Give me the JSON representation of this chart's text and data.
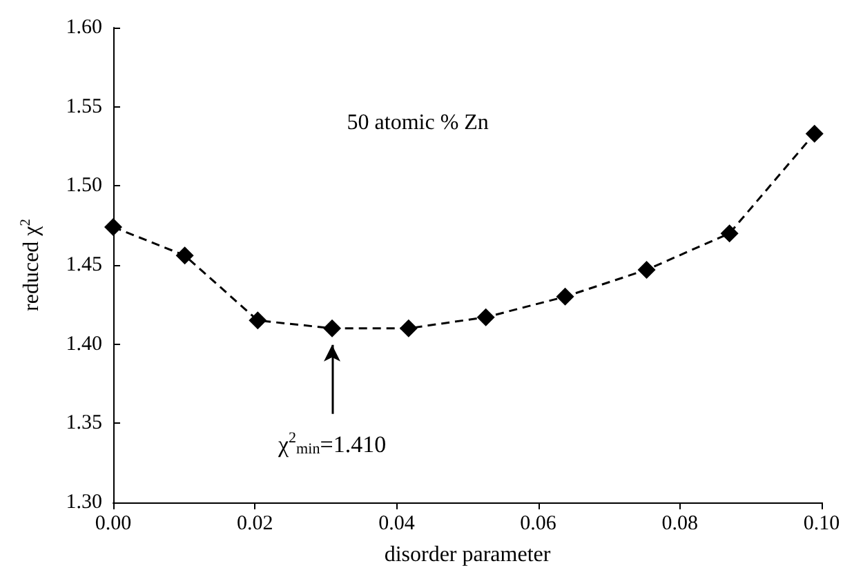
{
  "chart_data": {
    "type": "line",
    "xlabel": "disorder parameter",
    "ylabel": "reduced χ$^{2}$",
    "x": [
      0.0,
      0.0101,
      0.0204,
      0.0309,
      0.0417,
      0.0526,
      0.0638,
      0.0753,
      0.087,
      0.099
    ],
    "series": [
      {
        "color": "#000000",
        "values": [
          1.474,
          1.456,
          1.415,
          1.41,
          1.41,
          1.417,
          1.43,
          1.447,
          1.47,
          1.533
        ]
      }
    ],
    "annotations": [
      "50 atomic % Zn",
      "χ$^{2}$$_{min}$=1.410"
    ],
    "xlim": [
      0,
      0.1
    ],
    "xticks": [
      {
        "value": 0,
        "label": "0.00"
      },
      {
        "value": 0.02,
        "label": "0.02"
      },
      {
        "value": 0.04,
        "label": "0.04"
      },
      {
        "value": 0.06,
        "label": "0.06"
      },
      {
        "value": 0.08,
        "label": "0.08"
      },
      {
        "value": 0.1,
        "label": "0.10"
      }
    ],
    "ylim": [
      1.3,
      1.6
    ],
    "yticks": [
      {
        "value": 1.3,
        "label": "1.30"
      },
      {
        "value": 1.35,
        "label": "1.35"
      },
      {
        "value": 1.4,
        "label": "1.40"
      },
      {
        "value": 1.45,
        "label": "1.45"
      },
      {
        "value": 1.5,
        "label": "1.50"
      },
      {
        "value": 1.55,
        "label": "1.55"
      },
      {
        "value": 1.6,
        "label": "1.60"
      }
    ],
    "marker": "diamond",
    "line_style": "dashed",
    "grid": false
  }
}
